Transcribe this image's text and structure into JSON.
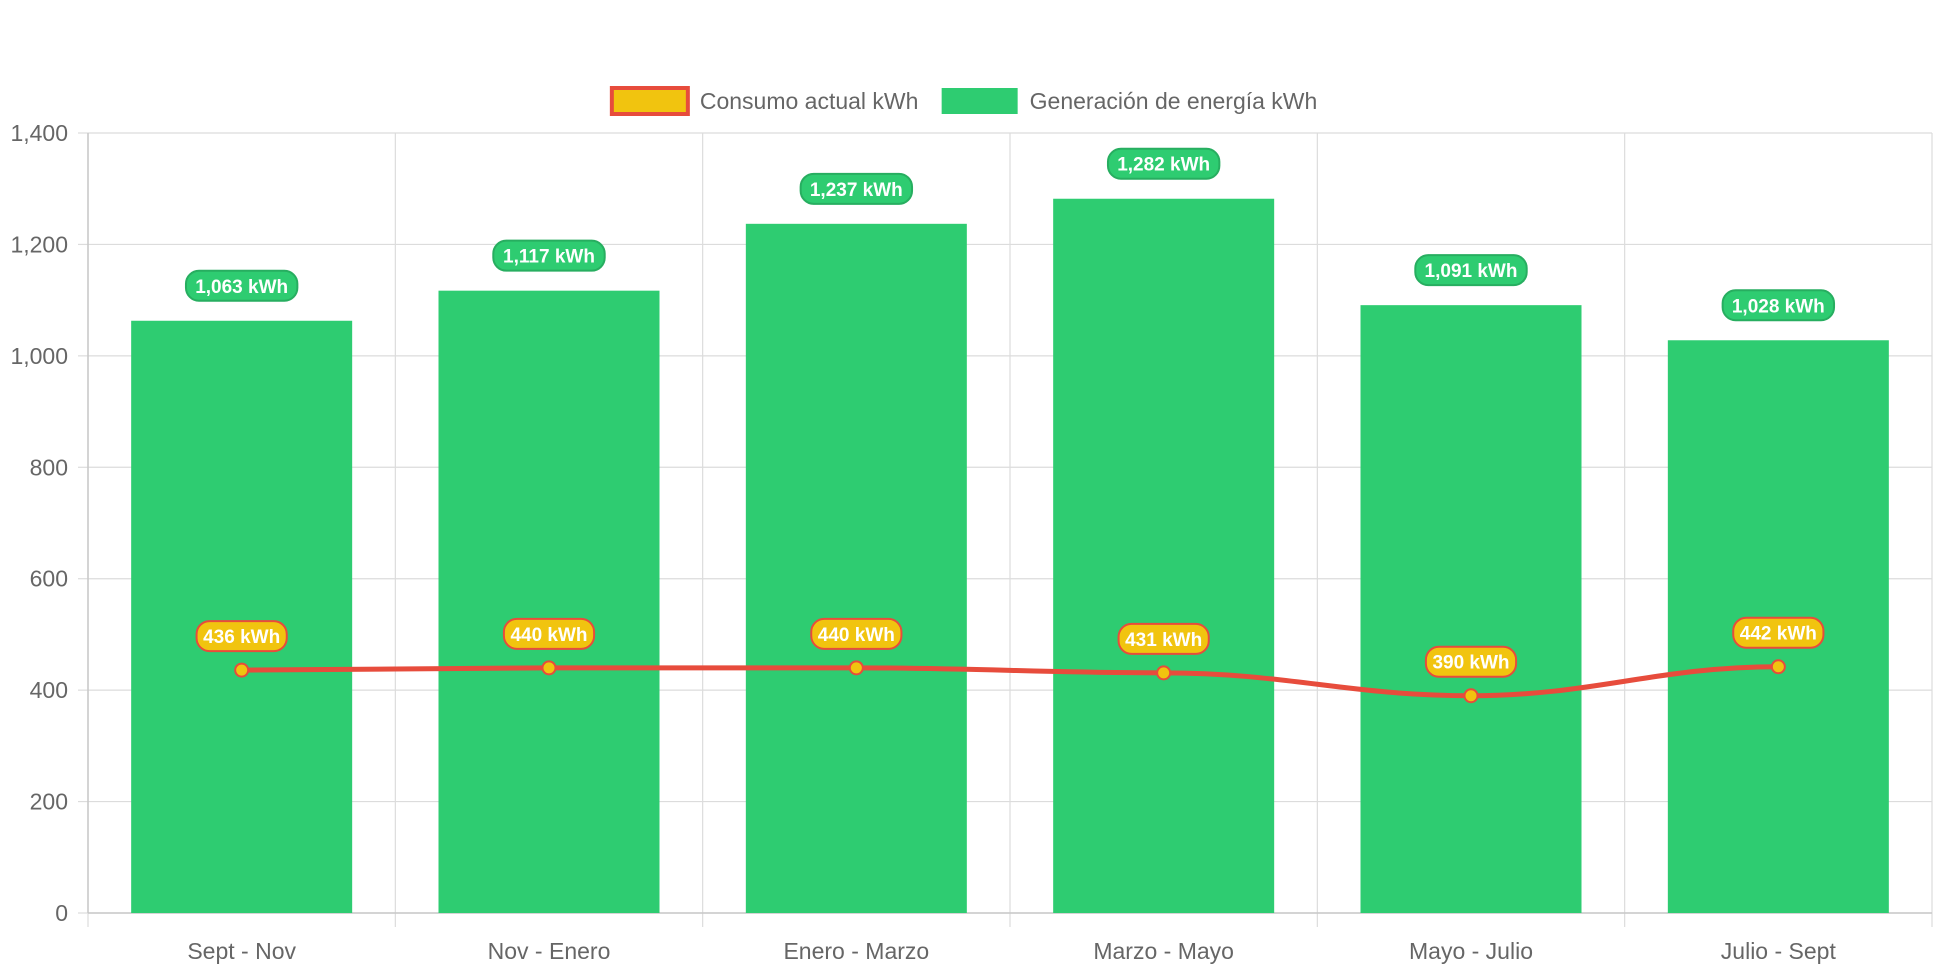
{
  "chart_data": {
    "type": "bar",
    "categories": [
      "Sept - Nov",
      "Nov - Enero",
      "Enero - Marzo",
      "Marzo - Mayo",
      "Mayo - Julio",
      "Julio - Sept"
    ],
    "ylim": [
      0,
      1400
    ],
    "y_ticks": [
      0,
      200,
      400,
      600,
      800,
      1000,
      1200,
      1400
    ],
    "y_tick_labels": [
      "0",
      "200",
      "400",
      "600",
      "800",
      "1,000",
      "1,200",
      "1,400"
    ],
    "grid": true,
    "legend_position": "top",
    "series": [
      {
        "name": "Consumo actual kWh",
        "type": "line",
        "values": [
          436,
          440,
          440,
          431,
          390,
          442
        ],
        "data_labels": [
          "436 kWh",
          "440 kWh",
          "440 kWh",
          "431 kWh",
          "390 kWh",
          "442 kWh"
        ],
        "line_color": "#e74c3c",
        "fill_color": "#f1c40f"
      },
      {
        "name": "Generación de energía kWh",
        "type": "bar",
        "values": [
          1063,
          1117,
          1237,
          1282,
          1091,
          1028
        ],
        "data_labels": [
          "1,063 kWh",
          "1,117 kWh",
          "1,237 kWh",
          "1,282 kWh",
          "1,091 kWh",
          "1,028 kWh"
        ],
        "fill_color": "#2ecc71",
        "label_border_color": "#27ae60"
      }
    ]
  }
}
